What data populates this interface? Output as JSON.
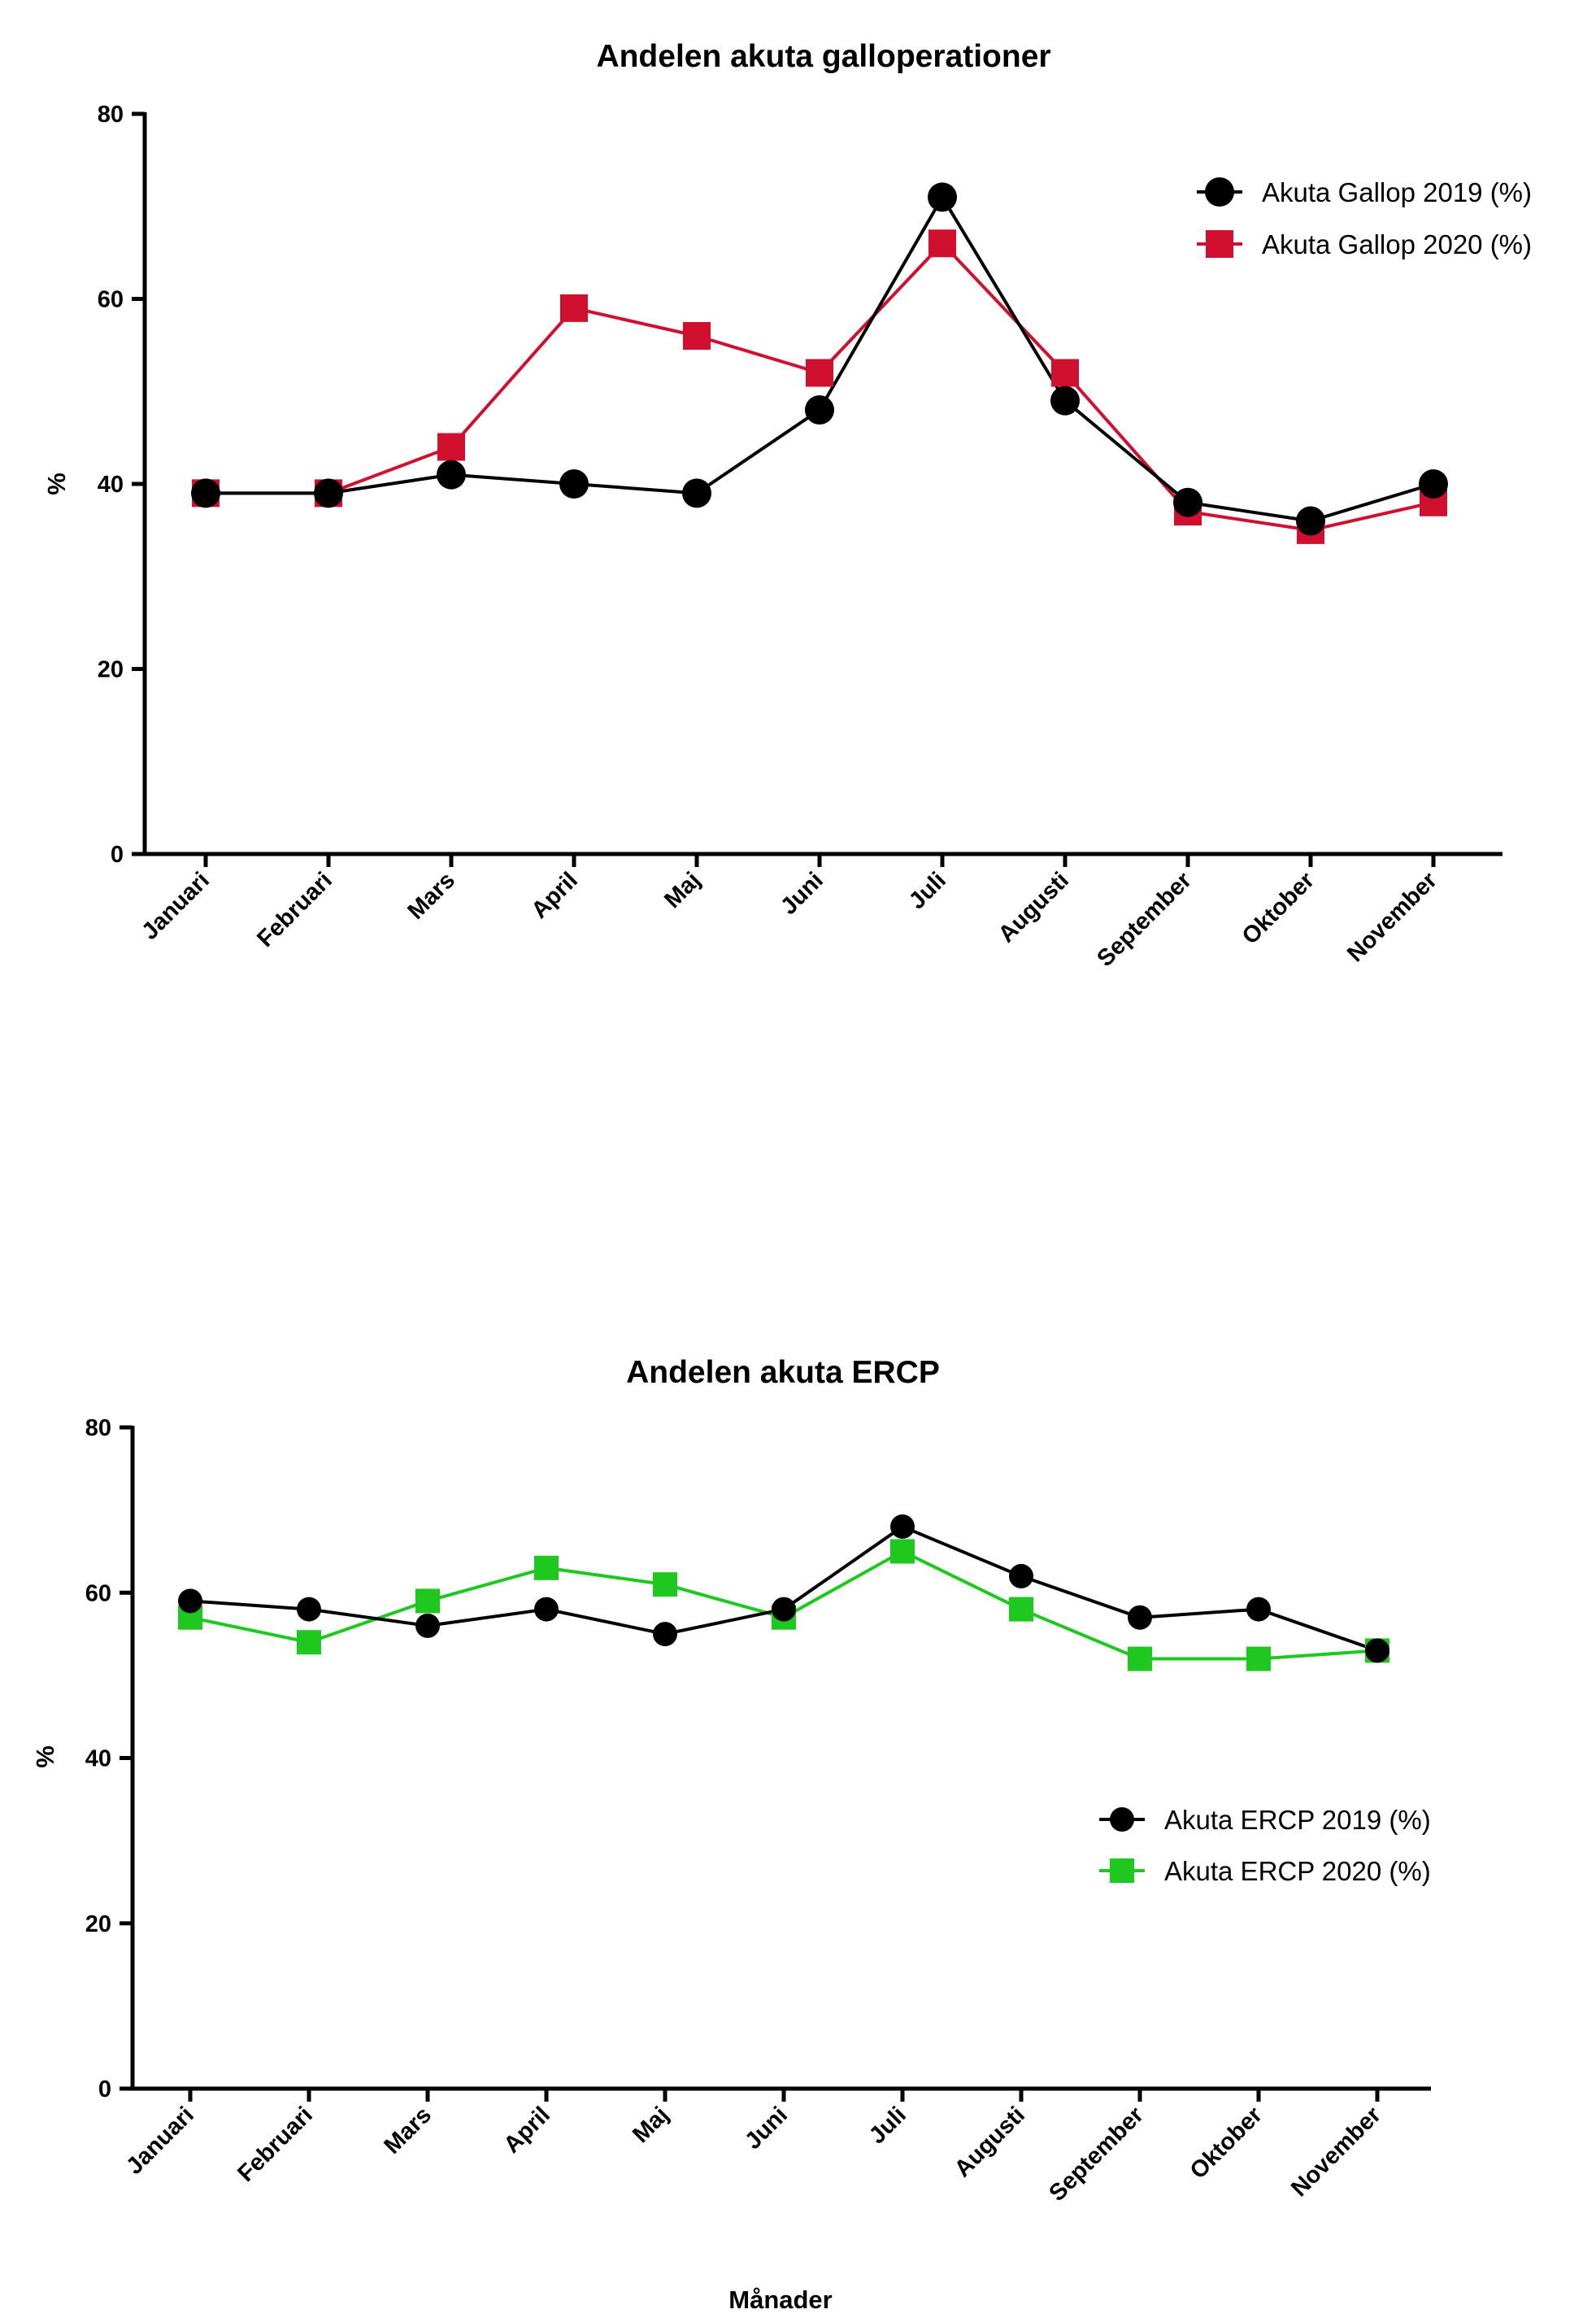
{
  "chart_data": [
    {
      "type": "line",
      "title": "Andelen akuta galloperationer",
      "ylabel": "%",
      "xlabel": "",
      "ylim": [
        0,
        80
      ],
      "yticks": [
        0,
        20,
        40,
        60,
        80
      ],
      "categories": [
        "Januari",
        "Februari",
        "Mars",
        "April",
        "Maj",
        "Juni",
        "Juli",
        "Augusti",
        "September",
        "Oktober",
        "November"
      ],
      "legend_position": "top-right",
      "series": [
        {
          "name": "Akuta Gallop 2019 (%)",
          "marker": "circle",
          "color": "#000000",
          "values": [
            39,
            39,
            41,
            40,
            39,
            48,
            71,
            49,
            38,
            36,
            40
          ]
        },
        {
          "name": "Akuta Gallop 2020 (%)",
          "marker": "square",
          "color": "#d0102e",
          "values": [
            39,
            39,
            44,
            59,
            56,
            52,
            66,
            52,
            37,
            35,
            38
          ]
        }
      ]
    },
    {
      "type": "line",
      "title": "Andelen akuta ERCP",
      "ylabel": "%",
      "xlabel": "Månader",
      "ylim": [
        0,
        80
      ],
      "yticks": [
        0,
        20,
        40,
        60,
        80
      ],
      "categories": [
        "Januari",
        "Februari",
        "Mars",
        "April",
        "Maj",
        "Juni",
        "Juli",
        "Augusti",
        "September",
        "Oktober",
        "November"
      ],
      "legend_position": "center-right",
      "series": [
        {
          "name": "Akuta ERCP 2019 (%)",
          "marker": "circle",
          "color": "#000000",
          "values": [
            59,
            58,
            56,
            58,
            55,
            58,
            68,
            62,
            57,
            58,
            53
          ]
        },
        {
          "name": "Akuta ERCP 2020 (%)",
          "marker": "square",
          "color": "#1ec81e",
          "values": [
            57,
            54,
            59,
            63,
            61,
            57,
            65,
            58,
            52,
            52,
            53
          ]
        }
      ]
    }
  ]
}
